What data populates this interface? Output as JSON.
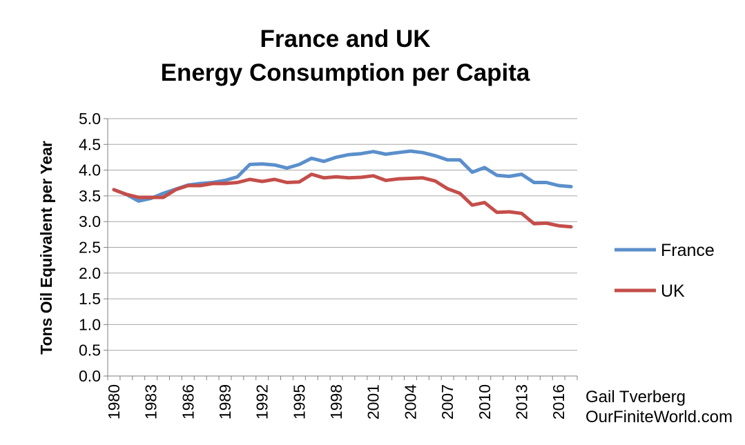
{
  "chart_data": {
    "type": "line",
    "title": "France and UK",
    "subtitle": "Energy Consumption per Capita",
    "xlabel": "",
    "ylabel": "Tons Oil Equivalent per Year",
    "ylim": [
      0,
      5.0
    ],
    "yticks": [
      "0.0",
      "0.5",
      "1.0",
      "1.5",
      "2.0",
      "2.5",
      "3.0",
      "3.5",
      "4.0",
      "4.5",
      "5.0"
    ],
    "xticks": [
      "1980",
      "1983",
      "1986",
      "1989",
      "1992",
      "1995",
      "1998",
      "2001",
      "2004",
      "2007",
      "2010",
      "2013",
      "2016"
    ],
    "grid": true,
    "legend": "right",
    "x": [
      1980,
      1981,
      1982,
      1983,
      1984,
      1985,
      1986,
      1987,
      1988,
      1989,
      1990,
      1991,
      1992,
      1993,
      1994,
      1995,
      1996,
      1997,
      1998,
      1999,
      2000,
      2001,
      2002,
      2003,
      2004,
      2005,
      2006,
      2007,
      2008,
      2009,
      2010,
      2011,
      2012,
      2013,
      2014,
      2015,
      2016,
      2017
    ],
    "series": [
      {
        "name": "France",
        "color": "#5b8fcb",
        "values": [
          3.62,
          3.53,
          3.4,
          3.45,
          3.55,
          3.63,
          3.71,
          3.74,
          3.76,
          3.8,
          3.87,
          4.11,
          4.12,
          4.1,
          4.04,
          4.11,
          4.23,
          4.17,
          4.25,
          4.3,
          4.32,
          4.36,
          4.31,
          4.34,
          4.37,
          4.34,
          4.28,
          4.2,
          4.2,
          3.96,
          4.05,
          3.9,
          3.88,
          3.92,
          3.76,
          3.76,
          3.7,
          3.68
        ]
      },
      {
        "name": "UK",
        "color": "#c44e4a",
        "values": [
          3.62,
          3.53,
          3.47,
          3.47,
          3.47,
          3.62,
          3.7,
          3.7,
          3.74,
          3.74,
          3.76,
          3.82,
          3.78,
          3.82,
          3.76,
          3.77,
          3.92,
          3.85,
          3.87,
          3.85,
          3.86,
          3.89,
          3.8,
          3.83,
          3.84,
          3.85,
          3.79,
          3.64,
          3.55,
          3.32,
          3.37,
          3.18,
          3.19,
          3.16,
          2.96,
          2.97,
          2.92,
          2.9
        ]
      }
    ]
  },
  "credit": {
    "line1": "Gail Tverberg",
    "line2": "OurFiniteWorld.com"
  }
}
